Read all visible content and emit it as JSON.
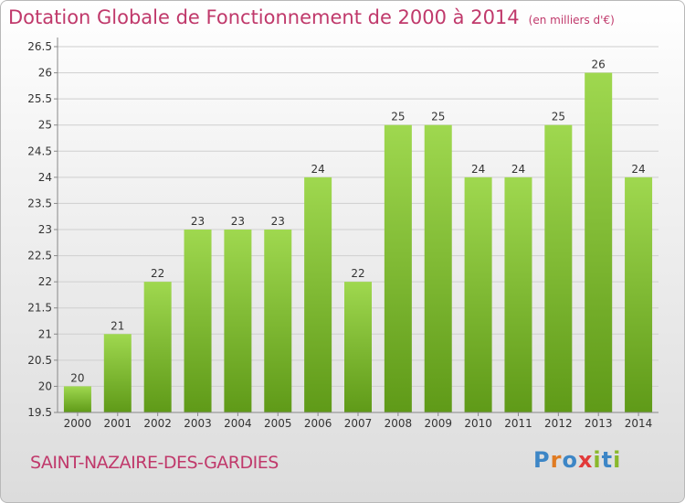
{
  "header": {
    "title": "Dotation Globale de Fonctionnement de 2000 à 2014",
    "unit": "(en milliers d'€)"
  },
  "footer": {
    "commune": "SAINT-NAZAIRE-DES-GARDIES",
    "brand": "Proxiti",
    "brand_colors": [
      "#3d86c6",
      "#e07b22",
      "#3d86c6",
      "#e23a3a",
      "#8ab82c",
      "#3d86c6",
      "#8ab82c"
    ]
  },
  "chart_data": {
    "type": "bar",
    "title": "Dotation Globale de Fonctionnement de 2000 à 2014",
    "categories": [
      "2000",
      "2001",
      "2002",
      "2003",
      "2004",
      "2005",
      "2006",
      "2007",
      "2008",
      "2009",
      "2010",
      "2011",
      "2012",
      "2013",
      "2014"
    ],
    "values": [
      20,
      21,
      22,
      23,
      23,
      23,
      24,
      22,
      25,
      25,
      24,
      24,
      25,
      26,
      24
    ],
    "value_labels": [
      "20",
      "21",
      "22",
      "23",
      "23",
      "23",
      "24",
      "22",
      "25",
      "25",
      "24",
      "24",
      "25",
      "26",
      "24"
    ],
    "y_ticks": [
      "19.5",
      "20",
      "20.5",
      "21",
      "21.5",
      "22",
      "22.5",
      "23",
      "23.5",
      "24",
      "24.5",
      "25",
      "25.5",
      "26",
      "26.5"
    ],
    "ylim": [
      19.5,
      26.5
    ],
    "grid": true,
    "bar_color": "#7cb82e",
    "xlabel": "",
    "ylabel": ""
  }
}
